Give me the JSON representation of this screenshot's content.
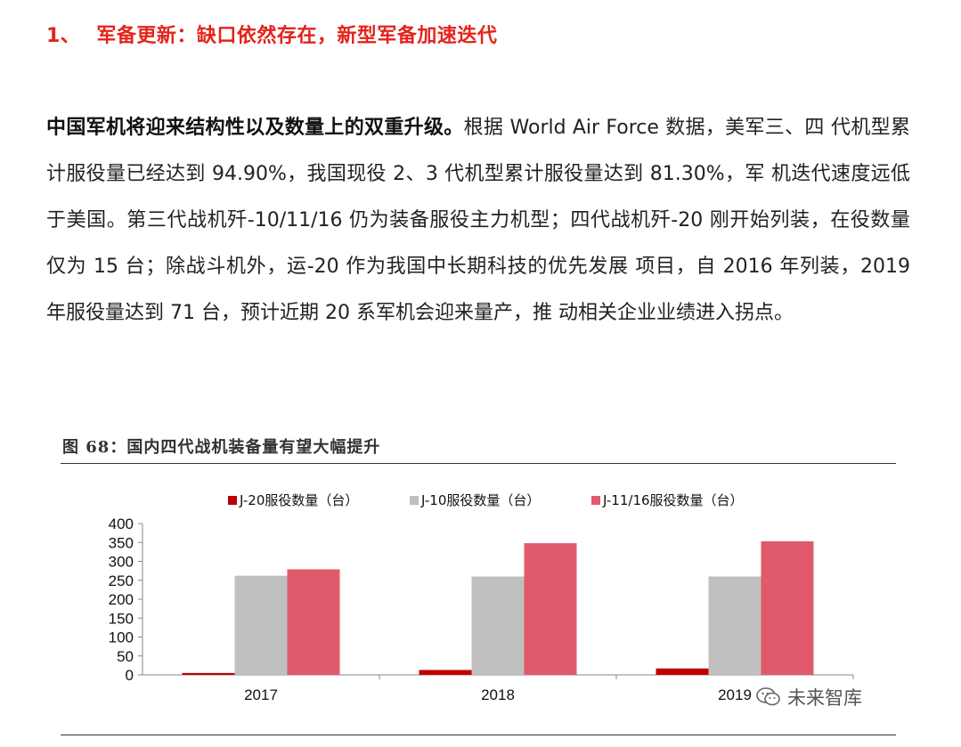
{
  "heading": {
    "number": "1、",
    "text": "军备更新：缺口依然存在，新型军备加速迭代"
  },
  "paragraph": {
    "bold_lead": "中国军机将迎来结构性以及数量上的双重升级。",
    "body": "根据 World Air Force 数据，美军三、四 代机型累计服役量已经达到 94.90%，我国现役 2、3 代机型累计服役量达到 81.30%，军 机迭代速度远低于美国。第三代战机歼-10/11/16 仍为装备服役主力机型；四代战机歼-20 刚开始列装，在役数量仅为 15 台；除战斗机外，运-20 作为我国中长期科技的优先发展 项目，自 2016 年列装，2019 年服役量达到 71 台，预计近期 20 系军机会迎来量产，推 动相关企业业绩进入拐点。"
  },
  "figure": {
    "title": "图 68：国内四代战机装备量有望大幅提升"
  },
  "chart_data": {
    "type": "bar",
    "categories": [
      "2017",
      "2018",
      "2019"
    ],
    "series": [
      {
        "name": "J-20服役数量（台）",
        "values": [
          5,
          13,
          17
        ],
        "color": "#c00000"
      },
      {
        "name": "J-10服役数量（台）",
        "values": [
          262,
          260,
          260
        ],
        "color": "#bfbfbf"
      },
      {
        "name": "J-11/16服役数量（台）",
        "values": [
          279,
          348,
          353
        ],
        "color": "#e05a6b"
      }
    ],
    "yticks": [
      "400",
      "350",
      "300",
      "250",
      "200",
      "150",
      "100",
      "50",
      "0"
    ],
    "ylim": [
      0,
      400
    ],
    "legend_position": "top",
    "grid": false
  },
  "watermark": {
    "text": "未来智库",
    "icon": "wechat-icon"
  }
}
